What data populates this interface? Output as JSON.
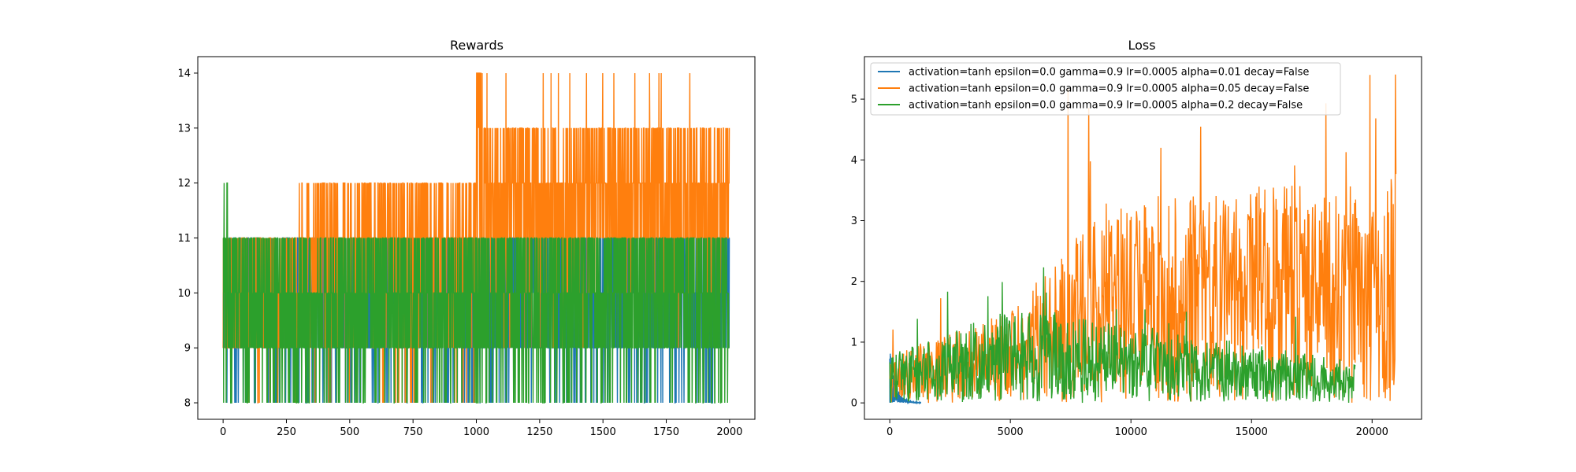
{
  "chart_data": [
    {
      "type": "line",
      "title": "Rewards",
      "xlabel": "",
      "ylabel": "",
      "xlim": [
        -100,
        2100
      ],
      "ylim": [
        7.7,
        14.3
      ],
      "xticks": [
        0,
        250,
        500,
        750,
        1000,
        1250,
        1500,
        1750,
        2000
      ],
      "xtick_labels": [
        "0",
        "250",
        "500",
        "750",
        "1000",
        "1250",
        "1500",
        "1750",
        "2000"
      ],
      "yticks": [
        8,
        9,
        10,
        11,
        12,
        13,
        14
      ],
      "ytick_labels": [
        "8",
        "9",
        "10",
        "11",
        "12",
        "13",
        "14"
      ],
      "grid": false,
      "legend": false,
      "n_points": 2000,
      "series": [
        {
          "color": "#1f77b4",
          "approx_range": [
            8,
            11
          ],
          "description": "mostly between 9 and 11, occasional drops to 8"
        },
        {
          "color": "#ff7f0e",
          "approx_range": [
            8,
            14
          ],
          "description": "9-11 early, frequent spikes to 12 after ~300, baseline 11-13 after 1000 with spikes to 14"
        },
        {
          "color": "#2ca02c",
          "approx_range": [
            8,
            12
          ],
          "description": "mostly between 9 and 11, drops to 8, spike to 12 near start"
        }
      ]
    },
    {
      "type": "line",
      "title": "Loss",
      "xlabel": "",
      "ylabel": "",
      "xlim": [
        -1050,
        22050
      ],
      "ylim": [
        -0.27,
        5.7
      ],
      "xticks": [
        0,
        5000,
        10000,
        15000,
        20000
      ],
      "xtick_labels": [
        "0",
        "5000",
        "10000",
        "15000",
        "20000"
      ],
      "yticks": [
        0,
        1,
        2,
        3,
        4,
        5
      ],
      "ytick_labels": [
        "0",
        "1",
        "2",
        "3",
        "4",
        "5"
      ],
      "grid": false,
      "legend": "top-left",
      "series": [
        {
          "name": "activation=tanh epsilon=0.0 gamma=0.9 lr=0.0005 alpha=0.01 decay=False",
          "color": "#1f77b4",
          "x_end": 1300,
          "approx_peak": 0.9
        },
        {
          "name": "activation=tanh epsilon=0.0 gamma=0.9 lr=0.0005 alpha=0.05 decay=False",
          "color": "#ff7f0e",
          "x_end": 21000,
          "approx_peak": 5.5,
          "description": "rises from ~0.8 to envelope ~3.8 by 21000 with spikes up to ~5.5"
        },
        {
          "name": "activation=tanh epsilon=0.0 gamma=0.9 lr=0.0005 alpha=0.2 decay=False",
          "color": "#2ca02c",
          "x_end": 19300,
          "approx_peak": 2.5,
          "description": "envelope rises to ~1.5 near 5000 then decays to ~0.7 by 19300"
        }
      ]
    }
  ]
}
